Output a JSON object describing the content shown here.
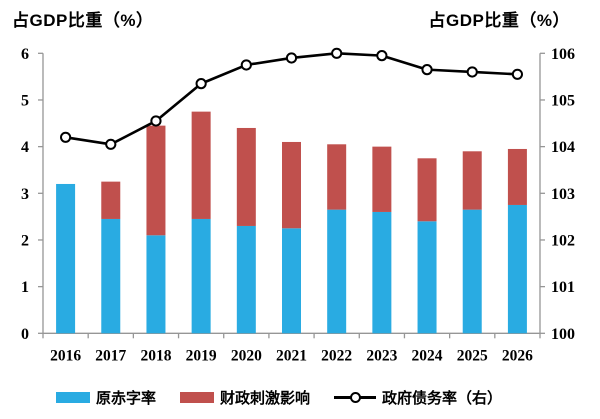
{
  "axis_titles": {
    "left": "占GDP比重（%）",
    "right": "占GDP比重（%）"
  },
  "legend": {
    "items": [
      {
        "label": "原赤字率",
        "type": "bar"
      },
      {
        "label": "财政刺激影响",
        "type": "bar"
      },
      {
        "label": "政府债务率（右）",
        "type": "line"
      }
    ]
  },
  "colors": {
    "deficit_bar": "#29ABE2",
    "stimulus_bar": "#C0504D",
    "debt_line": "#000000",
    "marker_fill": "#FFFFFF",
    "axis_line": "#969696",
    "text": "#000000"
  },
  "chart_data": {
    "type": "bar",
    "subtype": "stacked-bars-with-line-overlay",
    "title": "",
    "categories": [
      "2016",
      "2017",
      "2018",
      "2019",
      "2020",
      "2021",
      "2022",
      "2023",
      "2024",
      "2025",
      "2026"
    ],
    "series": [
      {
        "name": "原赤字率",
        "type": "bar",
        "stack": "deficit",
        "axis": "left",
        "color": "#29ABE2",
        "values": [
          3.2,
          2.45,
          2.1,
          2.45,
          2.3,
          2.25,
          2.65,
          2.6,
          2.4,
          2.65,
          2.75
        ]
      },
      {
        "name": "财政刺激影响",
        "type": "bar",
        "stack": "deficit",
        "axis": "left",
        "color": "#C0504D",
        "values": [
          0,
          0.8,
          2.35,
          2.3,
          2.1,
          1.85,
          1.4,
          1.4,
          1.35,
          1.25,
          1.2
        ]
      },
      {
        "name": "政府债务率（右）",
        "type": "line",
        "axis": "right",
        "color": "#000000",
        "marker": "open-circle",
        "values": [
          104.2,
          104.05,
          104.55,
          105.35,
          105.75,
          105.9,
          106.0,
          105.95,
          105.65,
          105.6,
          105.55
        ]
      }
    ],
    "left_axis": {
      "title": "占GDP比重（%）",
      "min": 0,
      "max": 6,
      "ticks": [
        0,
        1,
        2,
        3,
        4,
        5,
        6
      ]
    },
    "right_axis": {
      "title": "占GDP比重（%）",
      "min": 100,
      "max": 106,
      "ticks": [
        100,
        101,
        102,
        103,
        104,
        105,
        106
      ]
    },
    "grid": false,
    "legend_position": "bottom"
  }
}
